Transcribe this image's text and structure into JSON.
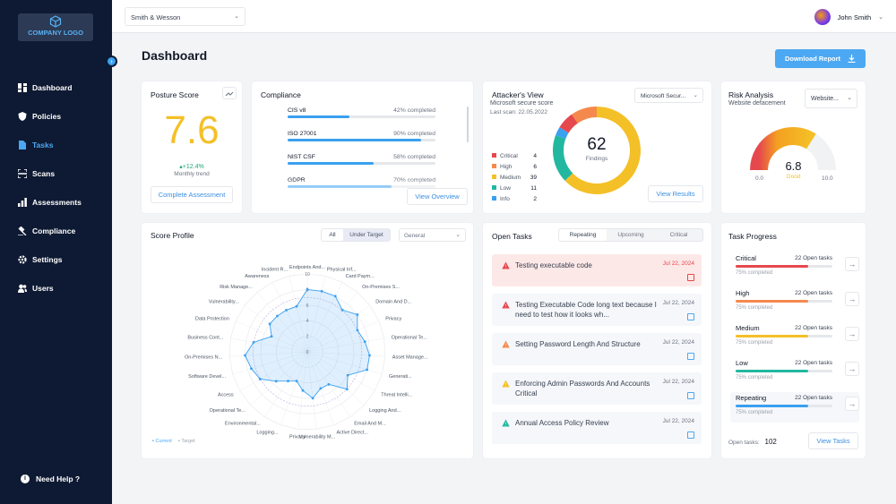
{
  "sidebar": {
    "logo": "COMPANY LOGO",
    "items": [
      {
        "label": "Dashboard",
        "icon": "dashboard-icon"
      },
      {
        "label": "Policies",
        "icon": "shield-icon"
      },
      {
        "label": "Tasks",
        "icon": "document-icon"
      },
      {
        "label": "Scans",
        "icon": "scan-icon"
      },
      {
        "label": "Assessments",
        "icon": "bar-chart-icon"
      },
      {
        "label": "Compliance",
        "icon": "gavel-icon"
      },
      {
        "label": "Settings",
        "icon": "gear-icon"
      },
      {
        "label": "Users",
        "icon": "users-icon"
      }
    ],
    "help": "Need Help ?"
  },
  "topbar": {
    "company": "Smith & Wesson",
    "user": "John Smith"
  },
  "page": {
    "title": "Dashboard",
    "download": "Download Report"
  },
  "posture": {
    "title": "Posture Score",
    "score": "7.6",
    "trend": "+12.4%",
    "trend_label": "Monthly trend",
    "button": "Complete Assessment"
  },
  "compliance": {
    "title": "Compliance",
    "items": [
      {
        "name": "CIS v8",
        "status": "42% completed",
        "pct": 42
      },
      {
        "name": "ISO 27001",
        "status": "90% completed",
        "pct": 90
      },
      {
        "name": "NIST CSF",
        "status": "58% completed",
        "pct": 58
      },
      {
        "name": "GDPR",
        "status": "70% completed",
        "pct": 70
      }
    ],
    "button": "View Overview"
  },
  "attacker": {
    "title": "Attacker's View",
    "subtitle": "Microsoft secure score",
    "last_scan": "Last scan: 22.05.2022",
    "select": "Microsoft Secur...",
    "findings": "62",
    "findings_label": "Findings",
    "legend": [
      {
        "label": "Critical",
        "value": "4",
        "color": "#e5484d"
      },
      {
        "label": "High",
        "value": "6",
        "color": "#f5894d"
      },
      {
        "label": "Medium",
        "value": "39",
        "color": "#f4c027"
      },
      {
        "label": "Low",
        "value": "11",
        "color": "#22b8a0"
      },
      {
        "label": "Info",
        "value": "2",
        "color": "#3aa0f0"
      }
    ],
    "button": "View Results"
  },
  "risk": {
    "title": "Risk Analysis",
    "subtitle": "Website defacement",
    "select": "Website...",
    "score": "6.8",
    "label": "Good",
    "min": "0.0",
    "max": "10.0"
  },
  "score_profile": {
    "title": "Score Profile",
    "tab_all": "All",
    "tab_under": "Under Target",
    "select": "General",
    "legend_current": "Current",
    "legend_target": "Target",
    "ticks": [
      "0",
      "2",
      "4",
      "6",
      "8",
      "10"
    ],
    "labels": [
      "Endpoints And...",
      "Physical Inf...",
      "Card Paym...",
      "On-Premises S...",
      "Domain And D...",
      "Privacy",
      "Operational Te...",
      "Asset Manage...",
      "Generati...",
      "Threat Intelli...",
      "Logging And...",
      "Email And M...",
      "Active Direct...",
      "Vulnerability M...",
      "Privacy",
      "Logging...",
      "Environmental...",
      "Operational Te...",
      "Access",
      "Software Devel...",
      "On-Premises N...",
      "Business Cont...",
      "Data Protection",
      "Vulnerability...",
      "Risk Manage...",
      "Awareness",
      "Incident R..."
    ],
    "current": [
      8,
      8,
      8,
      7,
      8,
      7,
      7.5,
      8,
      8,
      6,
      7,
      5,
      5,
      6,
      5,
      4,
      4.5,
      5.5,
      7,
      7.5,
      8,
      7,
      5,
      6,
      6,
      6,
      6
    ],
    "target": [
      7,
      7,
      7,
      7,
      7,
      7,
      7,
      7,
      7,
      7,
      7,
      7,
      7,
      7,
      7,
      7,
      7,
      7,
      7,
      7,
      7,
      7,
      7,
      7,
      7,
      7,
      7
    ]
  },
  "open_tasks": {
    "title": "Open Tasks",
    "tabs": [
      "Repeating",
      "Upcoming",
      "Critical"
    ],
    "items": [
      {
        "title": "Testing executable code",
        "date": "Jul 22, 2024",
        "level": "critical"
      },
      {
        "title": "Testing Executable Code long text because I need to test how it looks wh...",
        "date": "Jul 22, 2024",
        "level": "high"
      },
      {
        "title": "Setting Password Length And Structure",
        "date": "Jul 22, 2024",
        "level": "medium"
      },
      {
        "title": "Enforcing Admin Passwords And Accounts Critical",
        "date": "Jul 22, 2024",
        "level": "warning"
      },
      {
        "title": "Annual Access Policy Review",
        "date": "Jul 22, 2024",
        "level": "low"
      }
    ]
  },
  "task_progress": {
    "title": "Task Progress",
    "items": [
      {
        "name": "Critical",
        "open": "22 Open tasks",
        "pct_label": "75% completed",
        "pct": 75,
        "color": "#e5484d"
      },
      {
        "name": "High",
        "open": "22 Open tasks",
        "pct_label": "75% completed",
        "pct": 75,
        "color": "#f5894d"
      },
      {
        "name": "Medium",
        "open": "22 Open tasks",
        "pct_label": "75% completed",
        "pct": 75,
        "color": "#f4c027"
      },
      {
        "name": "Low",
        "open": "22 Open tasks",
        "pct_label": "75% completed",
        "pct": 75,
        "color": "#22b8a0"
      },
      {
        "name": "Repeating",
        "open": "22 Open tasks",
        "pct_label": "75% completed",
        "pct": 75,
        "color": "#3aa0f0"
      }
    ],
    "open_label": "Open tasks:",
    "open_count": "102",
    "button": "View Tasks"
  },
  "colors": {
    "accent": "#4ca8f2",
    "sidebar": "#0e1a33",
    "score": "#f4c027"
  }
}
